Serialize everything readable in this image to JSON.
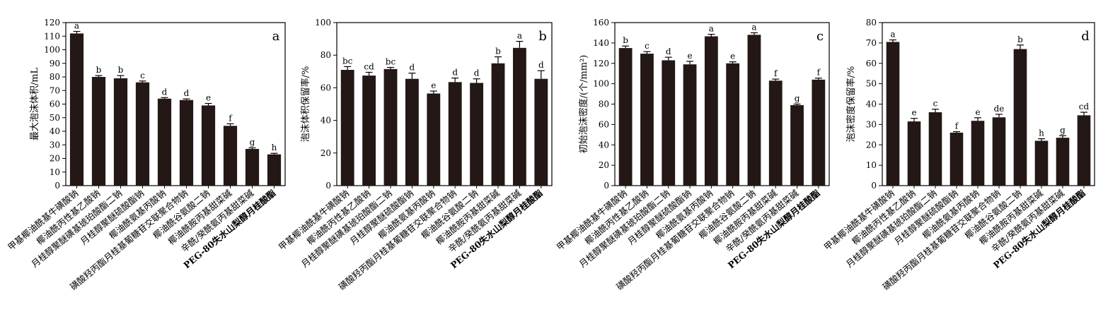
{
  "chart_data": [
    {
      "type": "bar",
      "panel_label": "a",
      "ylabel": "最大泡沫体积/mL",
      "ylim": [
        0,
        120
      ],
      "ytick_step": 10,
      "categories": [
        "甲基椰油酰基牛磺酸钠",
        "椰油酰丙性基乙酸钠",
        "月桂醇聚醚磺基琥珀酸酯二钠",
        "月桂醇聚醚硫酸酯钠",
        "椰油酰氨基丙酸钠",
        "磺酸羟丙酯月桂基葡糖苷交联聚合物钠",
        "椰油酰谷氨酸二钠",
        "椰油酰胺丙基甜菜碱",
        "辛酰/癸酰氨丙基甜菜碱",
        "PEG-80失水山梨醇月桂酸酯"
      ],
      "values": [
        112,
        80,
        79,
        76,
        64,
        63,
        59,
        44,
        27,
        23
      ],
      "errors": [
        1.5,
        1,
        2,
        1,
        0.8,
        0.8,
        1.5,
        1.5,
        0.8,
        0.8
      ],
      "letters": [
        "a",
        "b",
        "b",
        "c",
        "d",
        "d",
        "e",
        "f",
        "g",
        "h"
      ],
      "bar_color": "#231815"
    },
    {
      "type": "bar",
      "panel_label": "b",
      "ylabel": "泡沫体积保留率/%",
      "ylim": [
        0,
        100
      ],
      "ytick_step": 20,
      "categories": [
        "甲基椰油酰基牛磺酸钠",
        "椰油酰丙性基乙酸钠",
        "月桂醇聚醚磺基琥珀酸酯二钠",
        "月桂醇聚醚硫酸酯钠",
        "椰油酰氨基丙酸钠",
        "磺酸羟丙酯月桂基葡糖苷交联聚合物钠",
        "椰油酰谷氨酸二钠",
        "椰油酰胺丙基甜菜碱",
        "辛酰/癸酰氨丙基甜菜碱",
        "PEG-80失水山梨醇月桂酸酯"
      ],
      "values": [
        71,
        67.5,
        71.5,
        65.5,
        56.5,
        63.5,
        63,
        75,
        84.5,
        65.5
      ],
      "errors": [
        2,
        2,
        1,
        3.5,
        1.5,
        2.5,
        2.5,
        4,
        4,
        5
      ],
      "letters": [
        "bc",
        "cd",
        "bc",
        "d",
        "e",
        "d",
        "d",
        "b",
        "a",
        "d"
      ],
      "bar_color": "#231815"
    },
    {
      "type": "bar",
      "panel_label": "c",
      "ylabel": "初始泡沫密度/(个/mm²)",
      "ylim": [
        0,
        160
      ],
      "ytick_step": 20,
      "categories": [
        "甲基椰油酰基牛磺酸钠",
        "椰油酰丙性基乙酸钠",
        "月桂醇聚醚磺基琥珀酸酯二钠",
        "月桂醇聚醚硫酸酯钠",
        "椰油酰氨基丙酸钠",
        "磺酸羟丙酯月桂基葡糖苷交联聚合物钠",
        "椰油酰谷氨酸二钠",
        "椰油酰胺丙基甜菜碱",
        "辛酰/癸酰氨丙基甜菜碱",
        "PEG-80失水山梨醇月桂酸酯"
      ],
      "values": [
        135,
        129.5,
        123,
        119,
        146.5,
        120,
        148,
        103,
        79,
        104
      ],
      "errors": [
        2,
        2,
        3,
        3,
        2,
        1.5,
        2,
        1.5,
        1,
        1.5
      ],
      "letters": [
        "b",
        "c",
        "d",
        "e",
        "a",
        "e",
        "a",
        "f",
        "g",
        "f"
      ],
      "bar_color": "#231815"
    },
    {
      "type": "bar",
      "panel_label": "d",
      "ylabel": "泡沫密度保留率/%",
      "ylim": [
        0,
        80
      ],
      "ytick_step": 10,
      "categories": [
        "甲基椰油酰基牛磺酸钠",
        "椰油酰丙性基乙酸钠",
        "月桂醇聚醚磺基琥珀酸酯二钠",
        "月桂醇聚醚硫酸酯钠",
        "椰油酰氨基丙酸钠",
        "磺酸羟丙酯月桂基葡糖苷交联聚合物钠",
        "椰油酰谷氨酸二钠",
        "椰油酰胺丙基甜菜碱",
        "辛酰/癸酰氨丙基甜菜碱",
        "PEG-80失水山梨醇月桂酸酯"
      ],
      "values": [
        70.5,
        31.5,
        36,
        26,
        31.8,
        33.5,
        67,
        22,
        23.5,
        34.5
      ],
      "errors": [
        1,
        1.5,
        1.5,
        0.5,
        1.5,
        1.5,
        2,
        1,
        1,
        1.5
      ],
      "letters": [
        "a",
        "e",
        "c",
        "f",
        "e",
        "de",
        "b",
        "h",
        "g",
        "cd"
      ],
      "bar_color": "#231815"
    }
  ]
}
